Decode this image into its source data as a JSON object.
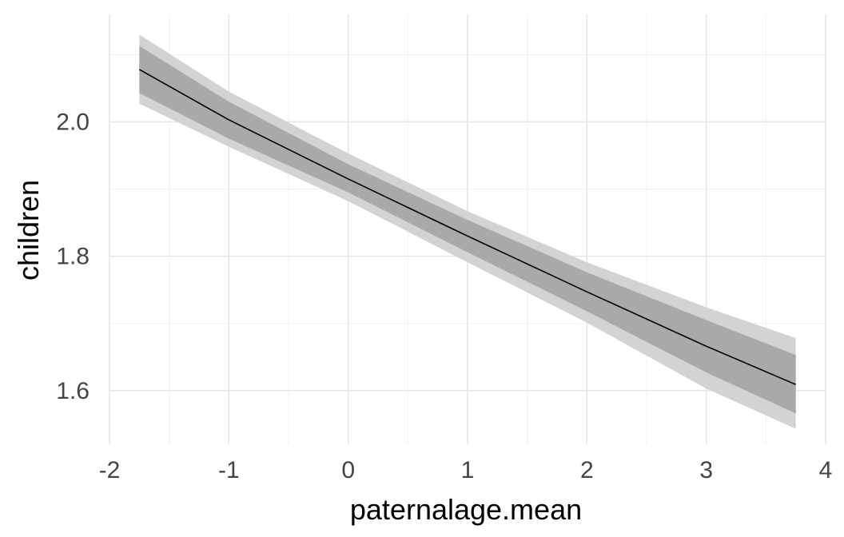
{
  "chart_data": {
    "type": "line",
    "xlabel": "paternalage.mean",
    "ylabel": "children",
    "xlim": [
      -2,
      4
    ],
    "ylim": [
      1.52,
      2.16
    ],
    "x_ticks": [
      -2,
      -1,
      0,
      1,
      2,
      3,
      4
    ],
    "x_tick_labels": [
      "-2",
      "-1",
      "0",
      "1",
      "2",
      "3",
      "4"
    ],
    "y_ticks": [
      1.6,
      1.8,
      2.0
    ],
    "y_tick_labels": [
      "1.6",
      "1.8",
      "2.0"
    ],
    "grid": true,
    "legend": "none",
    "series": [
      {
        "x": [
          -1.75,
          -1.0,
          0.0,
          1.0,
          2.0,
          3.0,
          3.75
        ],
        "y": [
          2.078,
          2.003,
          1.915,
          1.83,
          1.747,
          1.666,
          1.609
        ],
        "inner_lower": [
          2.043,
          1.975,
          1.895,
          1.806,
          1.718,
          1.627,
          1.566
        ],
        "inner_upper": [
          2.113,
          2.03,
          1.937,
          1.854,
          1.776,
          1.705,
          1.653
        ],
        "outer_lower": [
          2.027,
          1.963,
          1.882,
          1.791,
          1.701,
          1.603,
          1.543
        ],
        "outer_upper": [
          2.13,
          2.045,
          1.953,
          1.867,
          1.791,
          1.724,
          1.678
        ]
      }
    ],
    "colors": {
      "line": "#000000",
      "inner_band": "#a9a9a9",
      "outer_band": "#d3d3d3"
    }
  }
}
